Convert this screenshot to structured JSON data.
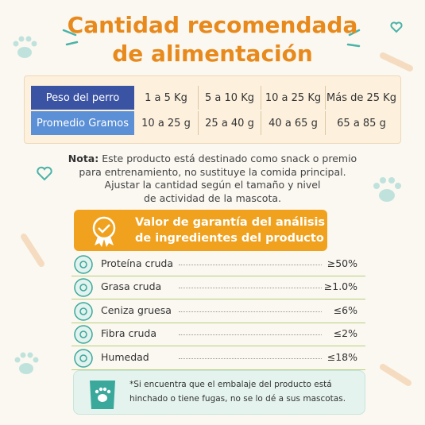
{
  "title": [
    "Cantidad recomendada",
    "de alimentación"
  ],
  "table": {
    "rows": [
      [
        "Peso del perro",
        "1 a 5 Kg",
        "5 a 10 Kg",
        "10 a 25 Kg",
        "Más de 25 Kg"
      ],
      [
        "Promedio Gramos",
        "10 a 25 g",
        "25 a 40 g",
        "40 a 65 g",
        "65 a 85 g"
      ]
    ]
  },
  "note": {
    "label": "Nota:",
    "lines": [
      "Este producto está destinado como snack o premio",
      "para entrenamiento, no sustituye la comida principal.",
      "Ajustar la cantidad según el tamaño y nivel",
      "de actividad de la mascota."
    ]
  },
  "guarantee": {
    "title": [
      "Valor de garantía del análisis",
      "de ingredientes del producto"
    ],
    "items": [
      {
        "name": "Proteína cruda",
        "value": "≥50%"
      },
      {
        "name": "Grasa cruda",
        "value": "≥1.0%"
      },
      {
        "name": "Ceniza gruesa",
        "value": "≤6%"
      },
      {
        "name": "Fibra cruda",
        "value": "≤2%"
      },
      {
        "name": "Humedad",
        "value": "≤18%"
      }
    ]
  },
  "footer": [
    "*Si encuentra que el embalaje del producto está",
    "hinchado o tiene fugas, no se lo dé a sus mascotas."
  ]
}
